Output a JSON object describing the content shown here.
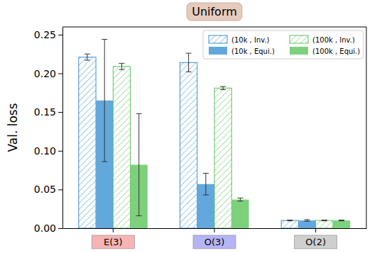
{
  "chart_data": {
    "type": "bar",
    "title": "Uniform",
    "y_label": "Val. loss",
    "categories": [
      "E(3)",
      "O(3)",
      "O(2)"
    ],
    "ylim": [
      0,
      0.26
    ],
    "yticks": [
      {
        "value": 0,
        "label": "0.00"
      },
      {
        "value": 0.05,
        "label": "0.05"
      },
      {
        "value": 0.1,
        "label": "0.10"
      },
      {
        "value": 0.15,
        "label": "0.15"
      },
      {
        "value": 0.2,
        "label": "0.20"
      },
      {
        "value": 0.25,
        "label": "0.25"
      }
    ],
    "grid": false,
    "legend": "upper right",
    "series": [
      {
        "name": "(10k , Inv.)",
        "color": "#3c8fd0",
        "line_style": "hatched",
        "values": [
          0.221,
          0.214,
          0.01
        ],
        "errors": [
          0.004,
          0.012,
          0.0005
        ]
      },
      {
        "name": "(10k , Equi.)",
        "color": "#62a8dc",
        "line_style": "solid",
        "values": [
          0.165,
          0.057,
          0.01
        ],
        "errors": [
          0.079,
          0.014,
          0.001
        ]
      },
      {
        "name": "(100k , Inv.)",
        "color": "#5cc25c",
        "line_style": "hatched",
        "values": [
          0.209,
          0.181,
          0.01
        ],
        "errors": [
          0.004,
          0.002,
          0.0005
        ]
      },
      {
        "name": "(100k , Equi.)",
        "color": "#7dd17d",
        "line_style": "solid",
        "values": [
          0.082,
          0.037,
          0.01
        ],
        "errors": [
          0.066,
          0.002,
          0.0005
        ]
      }
    ]
  }
}
